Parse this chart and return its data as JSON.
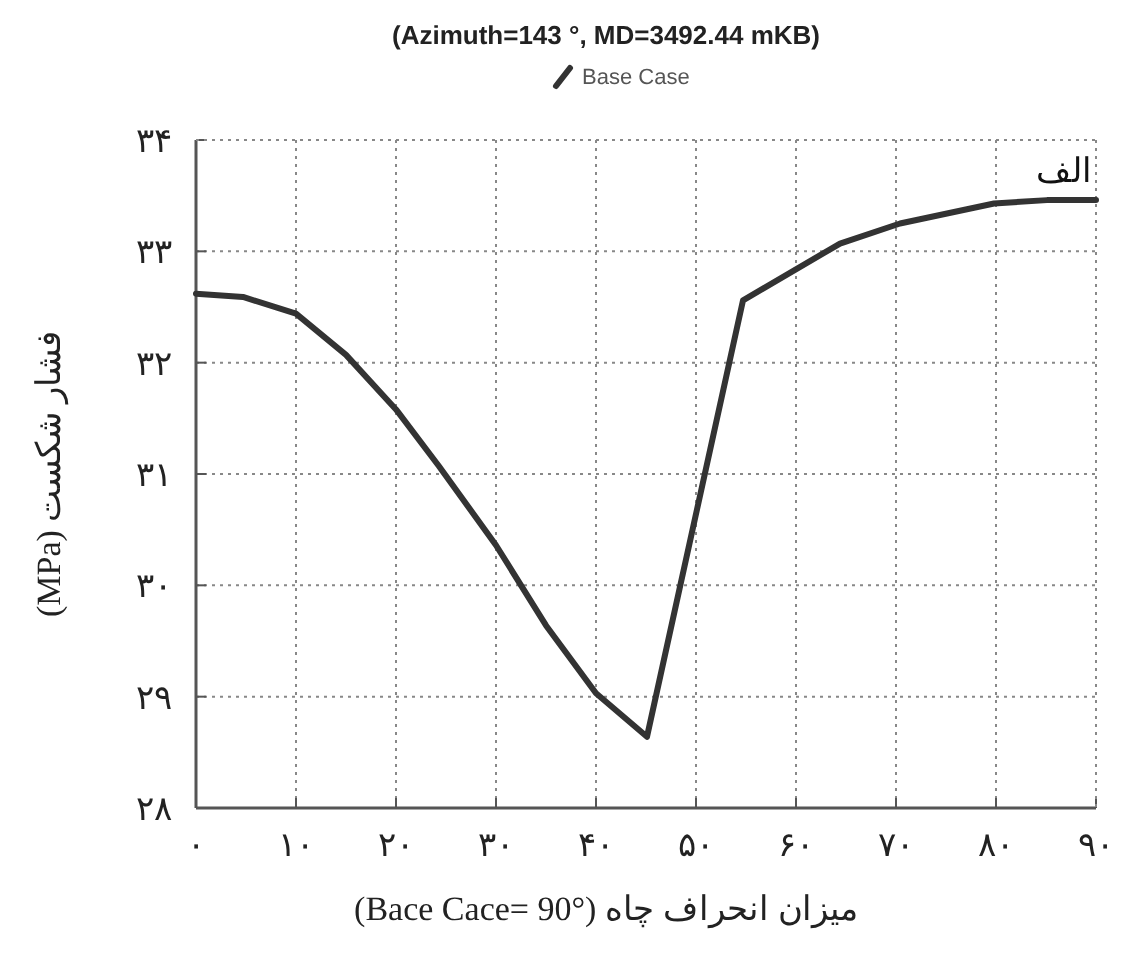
{
  "chart_data": {
    "type": "line",
    "title": "(Azimuth=143 °, MD=3492.44 mKB)",
    "xlabel": "میزان انحراف چاه (Bace Cace= 90°)",
    "ylabel": "فشار شکست (MPa)",
    "annotations": [
      {
        "text": "الف",
        "x": 90,
        "y": 33.46
      }
    ],
    "series": [
      {
        "name": "Base Case",
        "color": "#333333",
        "x": [
          0,
          4.7,
          10,
          15,
          20,
          24.3,
          30,
          35,
          40,
          45.1,
          54.7,
          64.4,
          70.4,
          75.1,
          79.8,
          85.1,
          90
        ],
        "values": [
          32.62,
          32.59,
          32.44,
          32.07,
          31.58,
          31.07,
          30.36,
          29.64,
          29.03,
          28.64,
          32.56,
          33.07,
          33.25,
          33.34,
          33.43,
          33.46,
          33.46
        ]
      }
    ],
    "xlim": [
      0,
      90
    ],
    "ylim": [
      28,
      34
    ],
    "xticks": [
      {
        "value": 0,
        "label": "۰"
      },
      {
        "value": 10,
        "label": "۱۰"
      },
      {
        "value": 20,
        "label": "۲۰"
      },
      {
        "value": 30,
        "label": "۳۰"
      },
      {
        "value": 40,
        "label": "۴۰"
      },
      {
        "value": 50,
        "label": "۵۰"
      },
      {
        "value": 60,
        "label": "۶۰"
      },
      {
        "value": 70,
        "label": "۷۰"
      },
      {
        "value": 80,
        "label": "۸۰"
      },
      {
        "value": 90,
        "label": "۹۰"
      }
    ],
    "yticks": [
      {
        "value": 28,
        "label": "۲۸"
      },
      {
        "value": 29,
        "label": "۲۹"
      },
      {
        "value": 30,
        "label": "۳۰"
      },
      {
        "value": 31,
        "label": "۳۱"
      },
      {
        "value": 32,
        "label": "۳۲"
      },
      {
        "value": 33,
        "label": "۳۳"
      },
      {
        "value": 34,
        "label": "۳۴"
      }
    ],
    "grid": true,
    "legend": "top",
    "marker": "none",
    "line_style": "solid"
  }
}
